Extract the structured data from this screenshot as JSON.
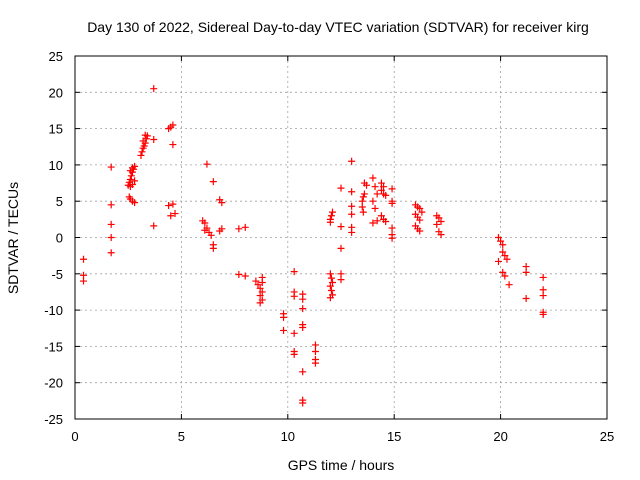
{
  "chart_data": {
    "type": "scatter",
    "title": "Day 130 of 2022, Sidereal Day-to-day VTEC variation (SDTVAR) for receiver kirg",
    "xlabel": "GPS time / hours",
    "ylabel": "SDTVAR / TECUs",
    "xlim": [
      0,
      25
    ],
    "ylim": [
      -25,
      25
    ],
    "xticks": [
      0,
      5,
      10,
      15,
      20,
      25
    ],
    "yticks": [
      -25,
      -20,
      -15,
      -10,
      -5,
      0,
      5,
      10,
      15,
      20,
      25
    ],
    "grid": true,
    "marker": "+",
    "color": "#ff0000",
    "series": [
      {
        "name": "SDTVAR",
        "points": [
          [
            0.4,
            -3.0
          ],
          [
            0.4,
            -5.2
          ],
          [
            0.4,
            -6.0
          ],
          [
            1.7,
            9.7
          ],
          [
            1.7,
            4.5
          ],
          [
            1.7,
            1.8
          ],
          [
            1.7,
            0.0
          ],
          [
            1.7,
            -2.1
          ],
          [
            2.5,
            7.2
          ],
          [
            2.55,
            7.6
          ],
          [
            2.6,
            8.0
          ],
          [
            2.65,
            8.5
          ],
          [
            2.7,
            9.0
          ],
          [
            2.75,
            9.4
          ],
          [
            2.8,
            9.8
          ],
          [
            2.55,
            5.6
          ],
          [
            2.6,
            5.3
          ],
          [
            2.7,
            5.0
          ],
          [
            2.8,
            4.8
          ],
          [
            2.6,
            7.0
          ],
          [
            2.7,
            7.3
          ],
          [
            2.8,
            7.8
          ],
          [
            2.6,
            9.2
          ],
          [
            2.7,
            9.6
          ],
          [
            3.1,
            11.3
          ],
          [
            3.15,
            11.8
          ],
          [
            3.2,
            12.3
          ],
          [
            3.25,
            12.6
          ],
          [
            3.3,
            13.0
          ],
          [
            3.35,
            13.6
          ],
          [
            3.4,
            14.0
          ],
          [
            3.2,
            13.3
          ],
          [
            3.3,
            14.1
          ],
          [
            3.7,
            20.5
          ],
          [
            3.7,
            13.5
          ],
          [
            3.7,
            1.6
          ],
          [
            4.4,
            15.0
          ],
          [
            4.5,
            15.2
          ],
          [
            4.6,
            15.5
          ],
          [
            4.6,
            12.8
          ],
          [
            4.4,
            4.4
          ],
          [
            4.6,
            4.6
          ],
          [
            4.5,
            3.0
          ],
          [
            4.7,
            3.3
          ],
          [
            6.0,
            2.3
          ],
          [
            6.1,
            2.0
          ],
          [
            6.2,
            1.3
          ],
          [
            6.3,
            0.7
          ],
          [
            6.4,
            0.3
          ],
          [
            6.1,
            1.0
          ],
          [
            6.2,
            10.1
          ],
          [
            6.5,
            7.7
          ],
          [
            6.5,
            -1.0
          ],
          [
            6.5,
            -1.5
          ],
          [
            6.8,
            5.2
          ],
          [
            6.9,
            4.8
          ],
          [
            6.9,
            1.2
          ],
          [
            6.8,
            0.9
          ],
          [
            7.7,
            1.2
          ],
          [
            8.0,
            1.4
          ],
          [
            7.7,
            -5.1
          ],
          [
            8.0,
            -5.3
          ],
          [
            8.5,
            -6.0
          ],
          [
            8.6,
            -6.5
          ],
          [
            8.7,
            -7.0
          ],
          [
            8.8,
            -5.5
          ],
          [
            8.8,
            -6.2
          ],
          [
            8.7,
            -8.0
          ],
          [
            8.8,
            -8.6
          ],
          [
            8.7,
            -9.0
          ],
          [
            8.8,
            -7.5
          ],
          [
            9.8,
            -10.5
          ],
          [
            9.8,
            -11.0
          ],
          [
            9.8,
            -12.8
          ],
          [
            10.3,
            -4.7
          ],
          [
            10.3,
            -7.5
          ],
          [
            10.3,
            -8.1
          ],
          [
            10.3,
            -13.2
          ],
          [
            10.3,
            -15.7
          ],
          [
            10.3,
            -16.1
          ],
          [
            10.7,
            -7.8
          ],
          [
            10.7,
            -8.5
          ],
          [
            10.7,
            -9.8
          ],
          [
            10.7,
            -12.0
          ],
          [
            10.7,
            -12.4
          ],
          [
            10.7,
            -18.5
          ],
          [
            10.7,
            -22.4
          ],
          [
            10.7,
            -22.8
          ],
          [
            11.3,
            -14.8
          ],
          [
            11.3,
            -15.7
          ],
          [
            11.3,
            -16.8
          ],
          [
            11.3,
            -17.3
          ],
          [
            12.0,
            2.5
          ],
          [
            12.05,
            3.0
          ],
          [
            12.1,
            3.5
          ],
          [
            12.0,
            2.1
          ],
          [
            12.0,
            -5.0
          ],
          [
            12.05,
            -5.6
          ],
          [
            12.1,
            -6.2
          ],
          [
            12.0,
            -6.7
          ],
          [
            12.05,
            -7.3
          ],
          [
            12.1,
            -7.9
          ],
          [
            12.0,
            -8.3
          ],
          [
            12.5,
            6.8
          ],
          [
            12.5,
            1.5
          ],
          [
            12.5,
            -1.5
          ],
          [
            12.5,
            -5.0
          ],
          [
            12.5,
            -5.8
          ],
          [
            13.0,
            10.5
          ],
          [
            13.0,
            6.3
          ],
          [
            13.0,
            4.3
          ],
          [
            13.0,
            3.2
          ],
          [
            13.0,
            1.4
          ],
          [
            13.0,
            0.7
          ],
          [
            13.5,
            5.0
          ],
          [
            13.55,
            5.6
          ],
          [
            13.6,
            6.0
          ],
          [
            13.5,
            4.2
          ],
          [
            13.55,
            3.5
          ],
          [
            13.6,
            7.5
          ],
          [
            13.7,
            7.2
          ],
          [
            14.0,
            8.2
          ],
          [
            14.1,
            7.0
          ],
          [
            14.2,
            6.0
          ],
          [
            14.0,
            5.0
          ],
          [
            14.1,
            4.0
          ],
          [
            14.2,
            2.3
          ],
          [
            14.0,
            2.0
          ],
          [
            14.4,
            7.5
          ],
          [
            14.5,
            7.0
          ],
          [
            14.5,
            6.0
          ],
          [
            14.6,
            5.8
          ],
          [
            14.4,
            3.0
          ],
          [
            14.5,
            2.5
          ],
          [
            14.6,
            2.2
          ],
          [
            14.4,
            6.5
          ],
          [
            14.9,
            6.7
          ],
          [
            14.9,
            5.0
          ],
          [
            14.9,
            4.7
          ],
          [
            14.9,
            1.3
          ],
          [
            14.9,
            0.4
          ],
          [
            14.9,
            -0.1
          ],
          [
            16.0,
            4.5
          ],
          [
            16.1,
            4.2
          ],
          [
            16.2,
            4.0
          ],
          [
            16.3,
            3.5
          ],
          [
            16.0,
            3.2
          ],
          [
            16.1,
            2.8
          ],
          [
            16.2,
            2.4
          ],
          [
            16.0,
            1.6
          ],
          [
            16.1,
            1.2
          ],
          [
            16.2,
            0.9
          ],
          [
            17.0,
            3.0
          ],
          [
            17.1,
            2.7
          ],
          [
            17.2,
            2.2
          ],
          [
            17.0,
            1.8
          ],
          [
            17.1,
            0.8
          ],
          [
            17.2,
            0.4
          ],
          [
            19.9,
            0.0
          ],
          [
            20.0,
            -0.5
          ],
          [
            20.1,
            -1.0
          ],
          [
            20.1,
            -2.0
          ],
          [
            20.2,
            -2.5
          ],
          [
            20.3,
            -3.0
          ],
          [
            19.9,
            -3.3
          ],
          [
            20.1,
            -4.8
          ],
          [
            20.2,
            -5.3
          ],
          [
            20.4,
            -6.5
          ],
          [
            21.2,
            -4.0
          ],
          [
            21.2,
            -4.8
          ],
          [
            21.2,
            -8.4
          ],
          [
            22.0,
            -5.5
          ],
          [
            22.0,
            -7.2
          ],
          [
            22.0,
            -8.0
          ],
          [
            22.0,
            -10.3
          ],
          [
            22.0,
            -10.6
          ]
        ]
      }
    ]
  }
}
